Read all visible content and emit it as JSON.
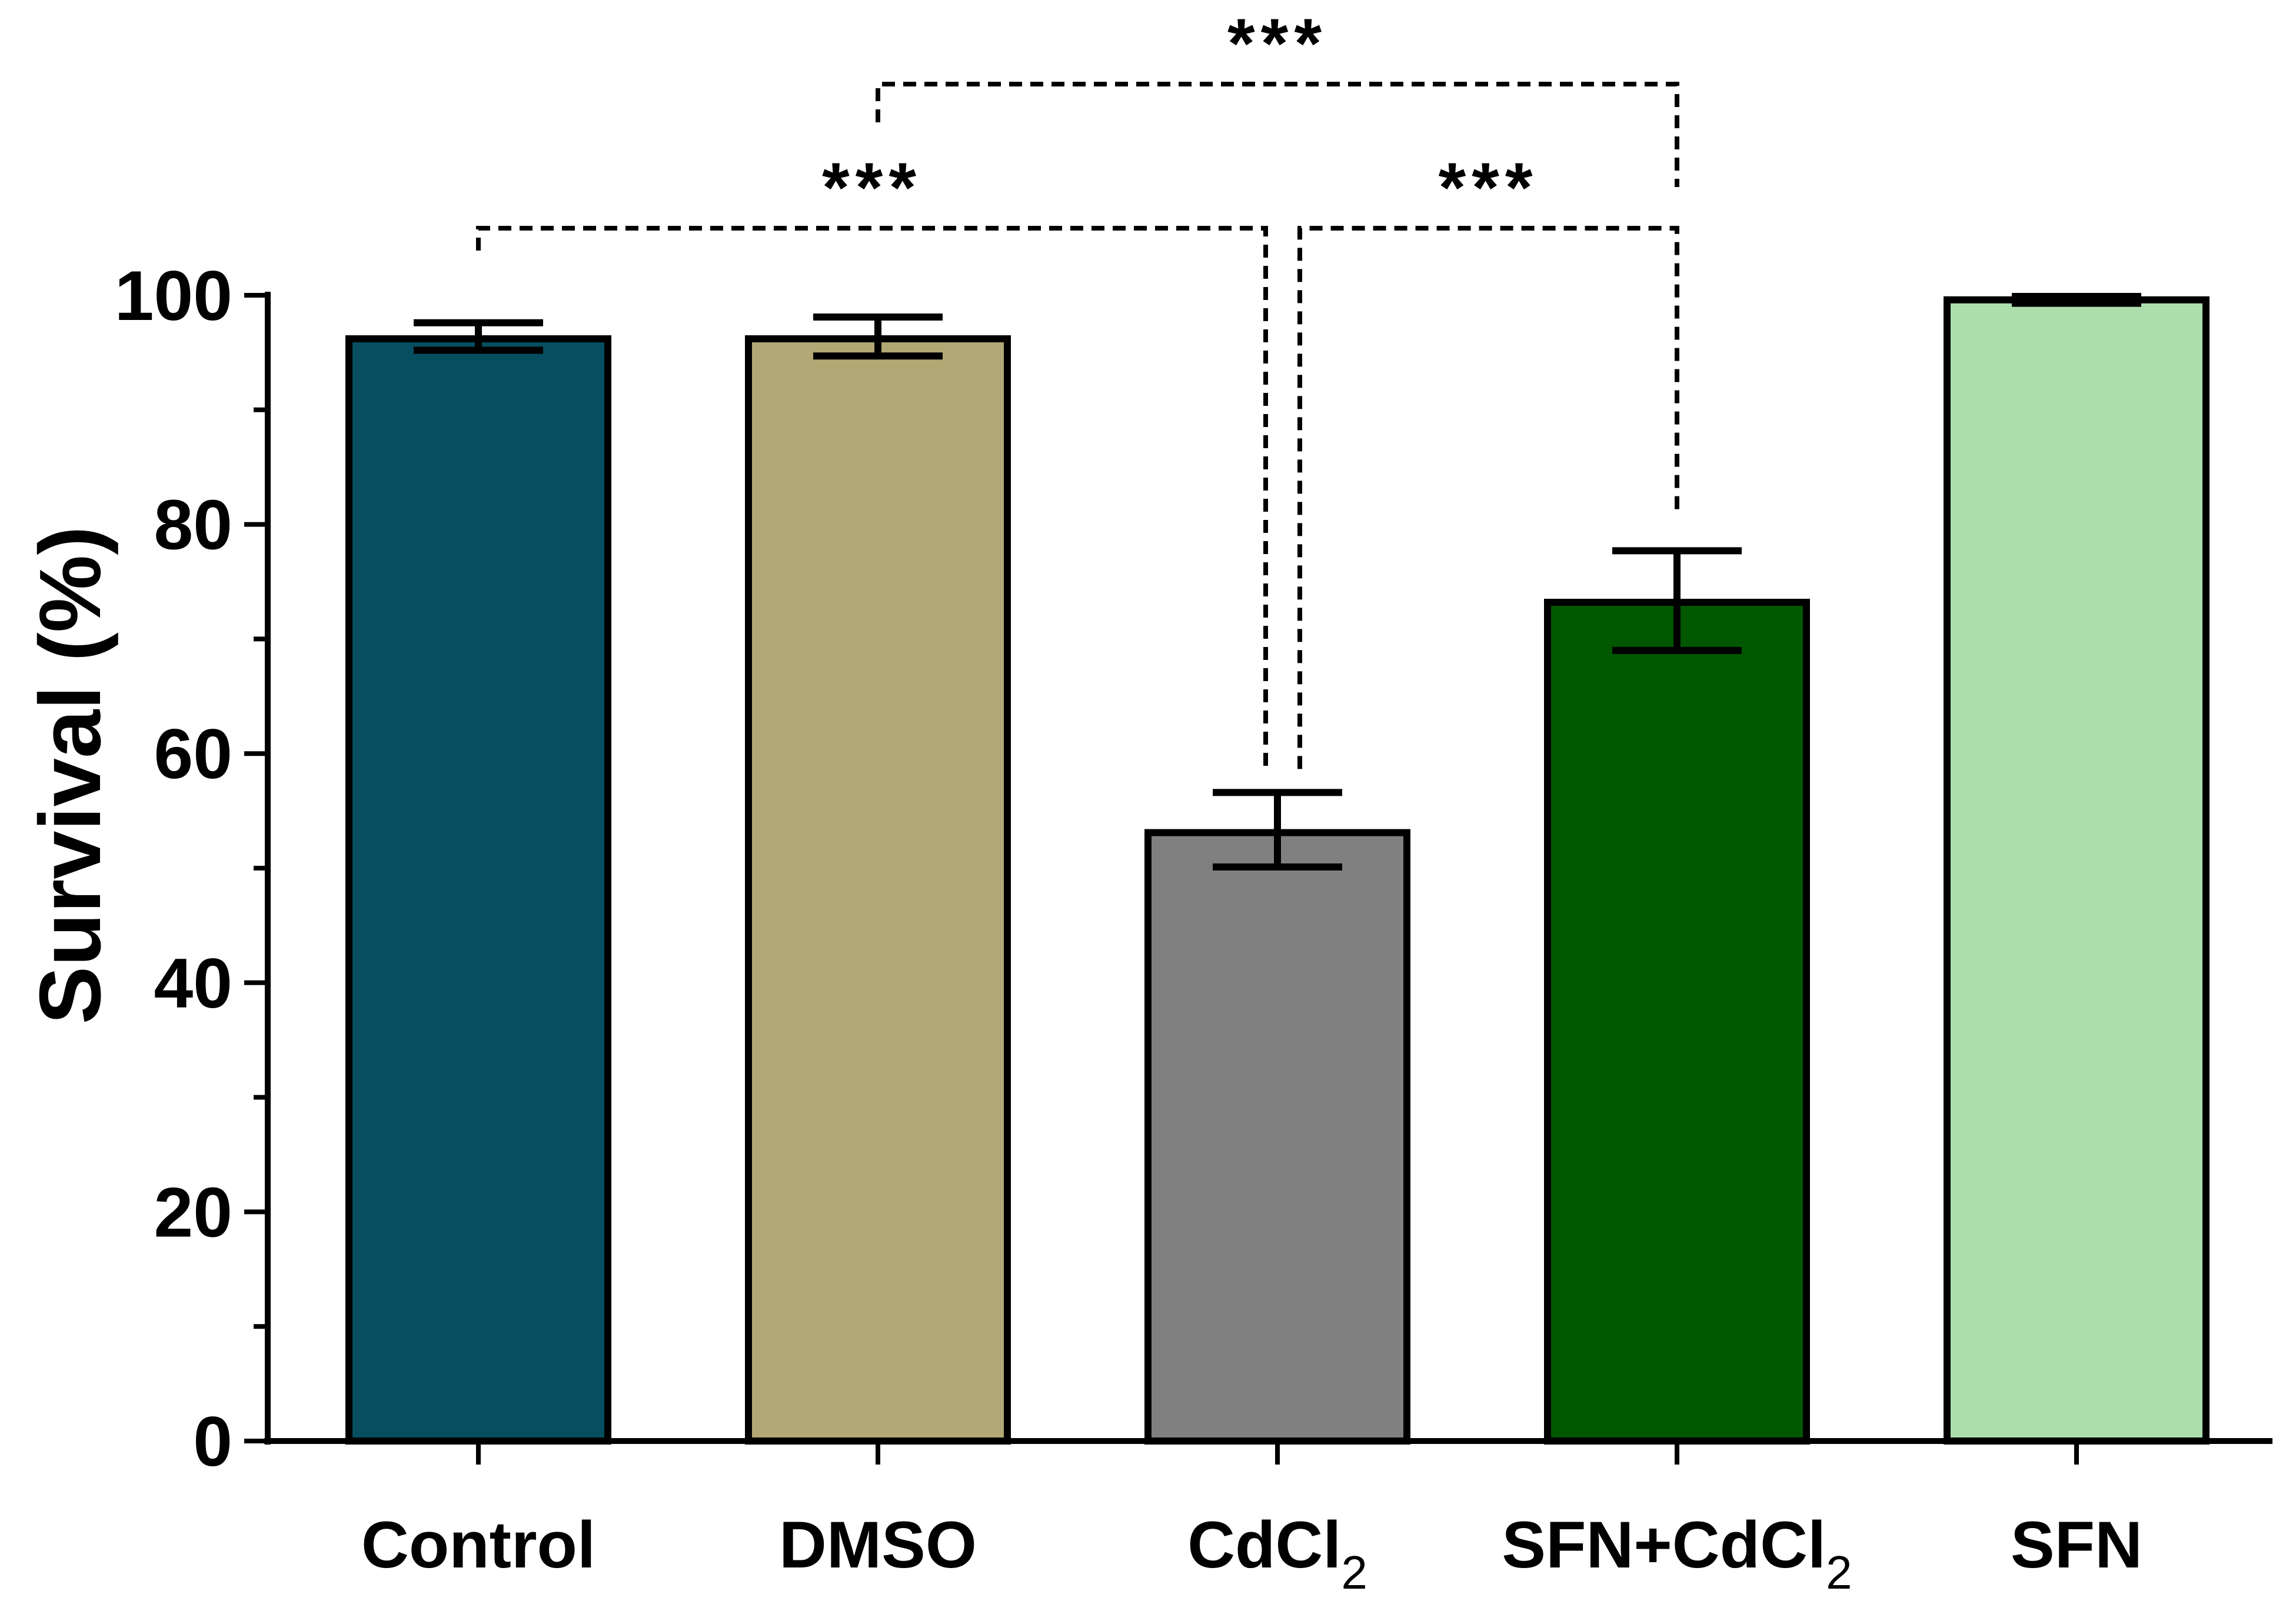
{
  "chart_data": {
    "type": "bar",
    "title": "",
    "xlabel": "",
    "ylabel": "Survival (%)",
    "ylim": [
      0,
      100
    ],
    "yticks": [
      "0",
      "20",
      "40",
      "60",
      "80",
      "100"
    ],
    "grid": false,
    "legend": "none",
    "categories": [
      {
        "base": "Control",
        "sub": ""
      },
      {
        "base": "DMSO",
        "sub": ""
      },
      {
        "base": "CdCl",
        "sub": "2"
      },
      {
        "base": "SFN+CdCl",
        "sub": "2"
      },
      {
        "base": "SFN",
        "sub": ""
      }
    ],
    "values": [
      96.2,
      96.2,
      53.1,
      73.2,
      99.6
    ],
    "error_low": [
      95.2,
      94.7,
      50.1,
      69.0,
      99.3
    ],
    "error_high": [
      97.6,
      98.1,
      56.6,
      77.7,
      99.9
    ],
    "colors": [
      "#064e60",
      "#b2a875",
      "#808080",
      "#005700",
      "#acdeac"
    ],
    "significance": [
      {
        "from": 0,
        "to": 2,
        "label": "***"
      },
      {
        "from": 2,
        "to": 3,
        "label": "***"
      },
      {
        "from": 1,
        "to": 3,
        "label": "***"
      }
    ]
  }
}
